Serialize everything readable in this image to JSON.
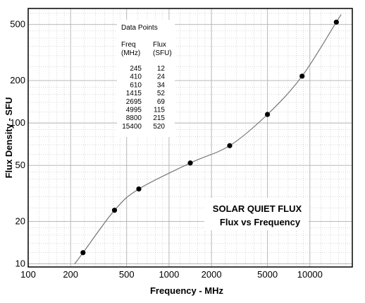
{
  "chart_data": {
    "type": "scatter",
    "title": "",
    "xlabel": "Frequency  -  MHz",
    "ylabel": "Flux Density  -  SFU",
    "x_scale": "log",
    "y_scale": "log",
    "xlim": [
      100,
      20000
    ],
    "ylim": [
      9.5,
      650
    ],
    "x_ticks": [
      100,
      200,
      500,
      1000,
      2000,
      5000,
      10000
    ],
    "x_tick_labels": [
      "100",
      "200",
      "500",
      "1000",
      "2000",
      "5000",
      "10000"
    ],
    "y_ticks": [
      10,
      20,
      50,
      100,
      200,
      500
    ],
    "y_tick_labels": [
      "10",
      "20",
      "50",
      "100",
      "200",
      "500"
    ],
    "grid": true,
    "x": [
      245,
      410,
      610,
      1415,
      2695,
      4995,
      8800,
      15400
    ],
    "y": [
      12,
      24,
      34,
      52,
      69,
      115,
      215,
      520
    ],
    "trend_curve": true,
    "colors": {
      "points": "#000000",
      "curve": "#777777",
      "grid": "#b0b0b0",
      "axis": "#000000"
    }
  },
  "table": {
    "title": "Data Points",
    "col1_header": [
      "Freq",
      "(MHz)"
    ],
    "col2_header": [
      "Flux",
      "(SFU)"
    ],
    "freq": [
      "245",
      "410",
      "610",
      "1415",
      "2695",
      "4995",
      "8800",
      "15400"
    ],
    "flux": [
      "12",
      "24",
      "34",
      "52",
      "69",
      "115",
      "215",
      "520"
    ]
  },
  "annotation": {
    "line1": "SOLAR QUIET FLUX",
    "line2": "Flux vs Frequency"
  }
}
